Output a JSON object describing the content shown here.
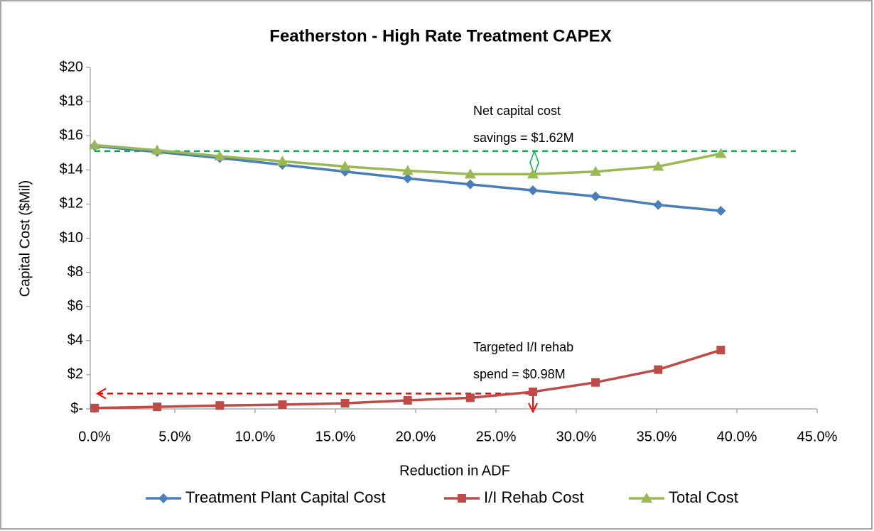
{
  "chart_data": {
    "type": "line",
    "title": "Featherston - High Rate Treatment CAPEX",
    "x_label": "Reduction in ADF",
    "y_label": "Capital Cost ($Mil)",
    "x": [
      0,
      3.9,
      7.8,
      11.7,
      15.6,
      19.5,
      23.4,
      27.3,
      31.2,
      35.1,
      39.0
    ],
    "series": [
      {
        "name": "Treatment Plant Capital Cost",
        "color": "#4a7ebb",
        "marker": "diamond",
        "values": [
          15.4,
          15.05,
          14.7,
          14.3,
          13.9,
          13.5,
          13.15,
          12.8,
          12.45,
          11.95,
          11.6
        ]
      },
      {
        "name": "I/I Rehab Cost",
        "color": "#be4b48",
        "marker": "square",
        "values": [
          0.05,
          0.12,
          0.2,
          0.25,
          0.33,
          0.5,
          0.65,
          1.0,
          1.55,
          2.3,
          3.45
        ]
      },
      {
        "name": "Total Cost",
        "color": "#98b954",
        "marker": "triangle",
        "values": [
          15.45,
          15.15,
          14.8,
          14.5,
          14.2,
          13.95,
          13.75,
          13.75,
          13.9,
          14.2,
          14.95
        ]
      }
    ],
    "xlim": [
      0,
      45
    ],
    "xticks": [
      {
        "value": 0,
        "label": "0.0%"
      },
      {
        "value": 5,
        "label": "5.0%"
      },
      {
        "value": 10,
        "label": "10.0%"
      },
      {
        "value": 15,
        "label": "15.0%"
      },
      {
        "value": 20,
        "label": "20.0%"
      },
      {
        "value": 25,
        "label": "25.0%"
      },
      {
        "value": 30,
        "label": "30.0%"
      },
      {
        "value": 35,
        "label": "35.0%"
      },
      {
        "value": 40,
        "label": "40.0%"
      },
      {
        "value": 45,
        "label": "45.0%"
      }
    ],
    "ylim": [
      0,
      20
    ],
    "yticks": [
      {
        "value": 0,
        "label": "$-"
      },
      {
        "value": 2,
        "label": "$2"
      },
      {
        "value": 4,
        "label": "$4"
      },
      {
        "value": 6,
        "label": "$6"
      },
      {
        "value": 8,
        "label": "$8"
      },
      {
        "value": 10,
        "label": "$10"
      },
      {
        "value": 12,
        "label": "$12"
      },
      {
        "value": 14,
        "label": "$14"
      },
      {
        "value": 16,
        "label": "$16"
      },
      {
        "value": 18,
        "label": "$18"
      },
      {
        "value": 20,
        "label": "$20"
      }
    ],
    "grid": false,
    "legend": "bottom",
    "reference_lines": [
      {
        "value": 15.1,
        "color": "#00b050"
      },
      {
        "value": 0.9,
        "color": "#ff0000"
      }
    ],
    "annotations": [
      {
        "lines": [
          "Net capital cost",
          "savings = $1.62M"
        ]
      },
      {
        "lines": [
          "Targeted I/I rehab",
          "spend = $0.98M"
        ]
      }
    ]
  }
}
